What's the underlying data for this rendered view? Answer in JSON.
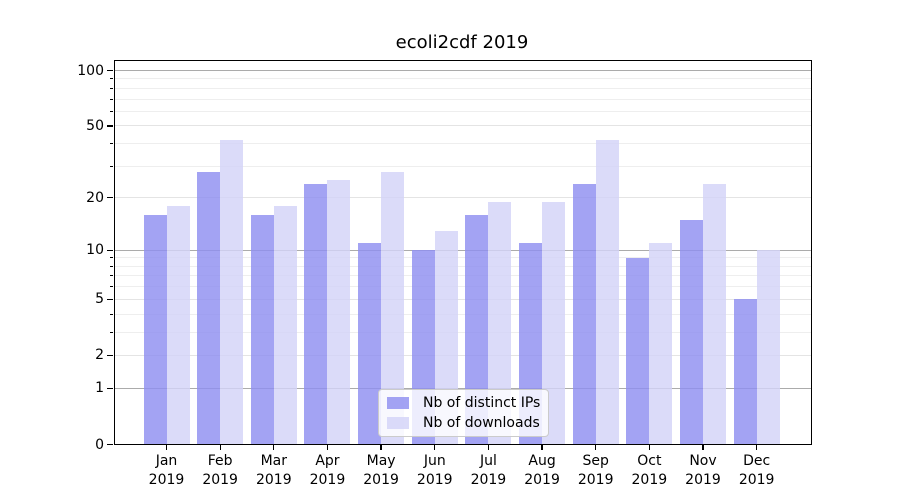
{
  "chart_data": {
    "type": "bar",
    "title": "ecoli2cdf 2019",
    "categories": [
      {
        "month": "Jan",
        "year": "2019"
      },
      {
        "month": "Feb",
        "year": "2019"
      },
      {
        "month": "Mar",
        "year": "2019"
      },
      {
        "month": "Apr",
        "year": "2019"
      },
      {
        "month": "May",
        "year": "2019"
      },
      {
        "month": "Jun",
        "year": "2019"
      },
      {
        "month": "Jul",
        "year": "2019"
      },
      {
        "month": "Aug",
        "year": "2019"
      },
      {
        "month": "Sep",
        "year": "2019"
      },
      {
        "month": "Oct",
        "year": "2019"
      },
      {
        "month": "Nov",
        "year": "2019"
      },
      {
        "month": "Dec",
        "year": "2019"
      }
    ],
    "series": [
      {
        "name": "Nb of distinct IPs",
        "color": "#8f8ff0",
        "values": [
          16,
          28,
          16,
          24,
          11,
          10,
          16,
          11,
          24,
          9,
          15,
          5
        ]
      },
      {
        "name": "Nb of downloads",
        "color": "#d3d3f8",
        "values": [
          18,
          42,
          18,
          25,
          28,
          13,
          19,
          19,
          42,
          11,
          24,
          10
        ]
      }
    ],
    "bar_opacity": 0.82,
    "yscale": "log1p",
    "ylim": [
      0,
      114
    ],
    "yticks": [
      0,
      1,
      2,
      5,
      10,
      20,
      50,
      100
    ],
    "gridlines": {
      "major_values": [
        1,
        10,
        100
      ],
      "major_color": "#ababab",
      "mid_values": [
        2,
        5,
        20,
        50
      ],
      "mid_color": "#e4e4e4",
      "minor_values": [
        3,
        4,
        6,
        7,
        8,
        9,
        30,
        40,
        60,
        70,
        80,
        90
      ],
      "minor_color": "#eeeeee"
    },
    "grid": "horizontal-only",
    "legend_position": "inside-bottom-center",
    "background": "#ffffff",
    "text_color": "#000000",
    "frame_color": "#000000"
  }
}
